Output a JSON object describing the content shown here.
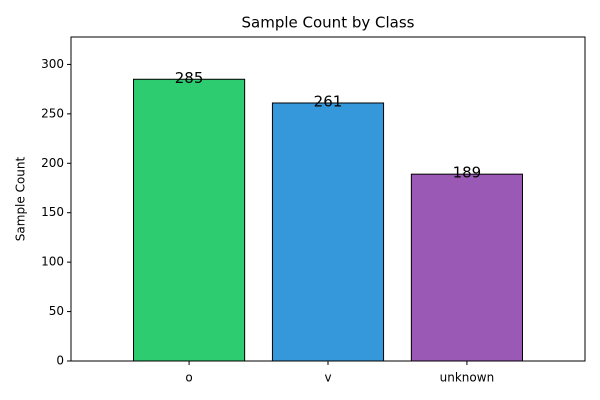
{
  "chart_data": {
    "type": "bar",
    "title": "Sample Count by Class",
    "y_label": "Sample Count",
    "categories": [
      "o",
      "v",
      "unknown"
    ],
    "values": [
      285,
      261,
      189
    ],
    "colors": [
      "#2ecc71",
      "#3498db",
      "#9b59b6"
    ],
    "ylim": [
      0,
      327.75
    ],
    "yticks": [
      0,
      50,
      100,
      150,
      200,
      250,
      300
    ]
  }
}
